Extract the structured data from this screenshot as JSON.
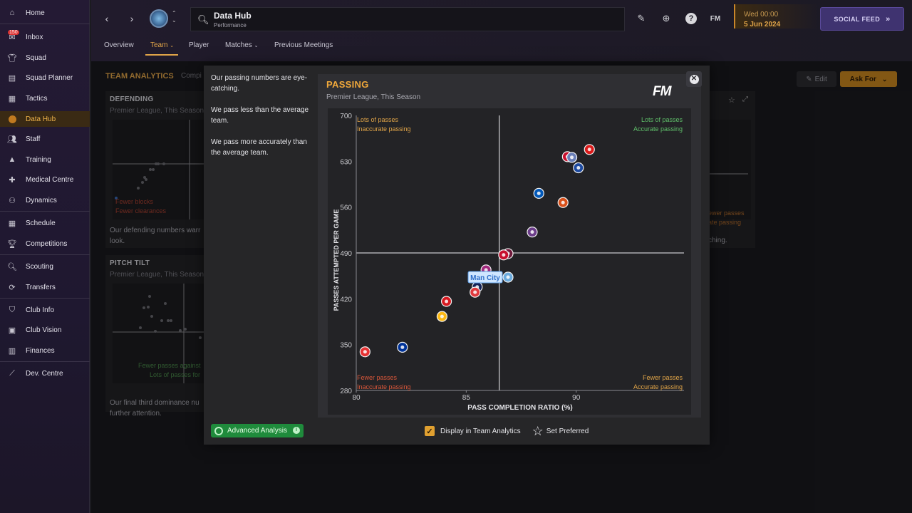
{
  "sidebar": {
    "items": [
      {
        "label": "Home",
        "icon": "home-icon"
      },
      {
        "label": "Inbox",
        "icon": "inbox-icon",
        "badge": "150"
      },
      {
        "label": "Squad",
        "icon": "shirt-icon"
      },
      {
        "label": "Squad Planner",
        "icon": "clipboard-icon"
      },
      {
        "label": "Tactics",
        "icon": "tactics-board-icon"
      },
      {
        "label": "Data Hub",
        "icon": "data-hub-icon"
      },
      {
        "label": "Staff",
        "icon": "staff-icon"
      },
      {
        "label": "Training",
        "icon": "training-icon"
      },
      {
        "label": "Medical Centre",
        "icon": "medical-icon"
      },
      {
        "label": "Dynamics",
        "icon": "dynamics-icon"
      },
      {
        "label": "Schedule",
        "icon": "calendar-icon"
      },
      {
        "label": "Competitions",
        "icon": "trophy-icon"
      },
      {
        "label": "Scouting",
        "icon": "scouting-icon"
      },
      {
        "label": "Transfers",
        "icon": "transfers-icon"
      },
      {
        "label": "Club Info",
        "icon": "shield-icon"
      },
      {
        "label": "Club Vision",
        "icon": "vision-icon"
      },
      {
        "label": "Finances",
        "icon": "finances-icon"
      },
      {
        "label": "Dev. Centre",
        "icon": "dev-centre-icon"
      }
    ]
  },
  "header": {
    "title": "Data Hub",
    "subtitle": "Performance",
    "day_time": "Wed 00:00",
    "date": "5 Jun 2024",
    "social_feed": "SOCIAL FEED",
    "fm_label": "FM",
    "tabs": [
      {
        "label": "Overview"
      },
      {
        "label": "Team"
      },
      {
        "label": "Player"
      },
      {
        "label": "Matches"
      },
      {
        "label": "Previous Meetings"
      }
    ]
  },
  "main": {
    "title": "TEAM ANALYTICS",
    "compare_prefix": "Compi",
    "edit": "Edit",
    "ask_for": "Ask For",
    "cards": {
      "defending": {
        "title": "DEFENDING",
        "subtitle": "Premier League, This Season",
        "q1": "Fewer blocks",
        "q2": "Fewer clearances",
        "desc1": "Our defending numbers warr",
        "desc2": "look."
      },
      "pitch_tilt": {
        "title": "PITCH TILT",
        "subtitle": "Premier League, This Season",
        "q1": "Fewer passes against",
        "q2": "Lots of passes for",
        "desc1": "Our final third dominance nu",
        "desc2": "further attention."
      },
      "right": {
        "q1": "ewer passes",
        "q2": "ate passing",
        "desc": "ching."
      }
    }
  },
  "modal": {
    "notes": [
      "Our passing numbers are eye-catching.",
      "We pass less than the average team.",
      "We pass more accurately than the average team."
    ],
    "advanced_analysis": "Advanced Analysis",
    "display_in_team_analytics": "Display in Team Analytics",
    "set_preferred": "Set Preferred"
  },
  "chart_data": {
    "type": "scatter",
    "title": "PASSING",
    "subtitle": "Premier League, This Season",
    "xlabel": "PASS COMPLETION RATIO (%)",
    "ylabel": "PASSES ATTEMPTED PER GAME",
    "xlim": [
      80,
      94.9
    ],
    "ylim": [
      280,
      700
    ],
    "xticks": [
      80,
      85,
      90
    ],
    "yticks": [
      280,
      350,
      420,
      490,
      560,
      630,
      700
    ],
    "average_x": 86.5,
    "average_y": 490,
    "quadrant_labels": {
      "top_left": [
        "Lots of passes",
        "Inaccurate passing"
      ],
      "top_right": [
        "Lots of passes",
        "Accurate passing"
      ],
      "bottom_left": [
        "Fewer passes",
        "Inaccurate passing"
      ],
      "bottom_right": [
        "Fewer passes",
        "Accurate passing"
      ]
    },
    "highlight_label": "Man City",
    "points": [
      {
        "x": 90.6,
        "y": 648,
        "color": "#db1a1a"
      },
      {
        "x": 89.6,
        "y": 637,
        "color": "#c8102e"
      },
      {
        "x": 89.8,
        "y": 636,
        "color": "#6a7fb8"
      },
      {
        "x": 90.1,
        "y": 620,
        "color": "#1d4aa0"
      },
      {
        "x": 88.3,
        "y": 581,
        "color": "#0057b8"
      },
      {
        "x": 89.4,
        "y": 567,
        "color": "#d9501a"
      },
      {
        "x": 88.0,
        "y": 522,
        "color": "#6c3d8a"
      },
      {
        "x": 86.9,
        "y": 489,
        "color": "#6f1a3b"
      },
      {
        "x": 86.7,
        "y": 487,
        "color": "#c8102e"
      },
      {
        "x": 85.9,
        "y": 464,
        "color": "#a1287c"
      },
      {
        "x": 86.9,
        "y": 453,
        "color": "#6cabdd",
        "highlight": true
      },
      {
        "x": 85.5,
        "y": 438,
        "color": "#132257"
      },
      {
        "x": 85.4,
        "y": 430,
        "color": "#e03a3e"
      },
      {
        "x": 84.1,
        "y": 416,
        "color": "#d71920"
      },
      {
        "x": 83.9,
        "y": 393,
        "color": "#fdb913"
      },
      {
        "x": 82.1,
        "y": 346,
        "color": "#003399"
      },
      {
        "x": 80.4,
        "y": 339,
        "color": "#e53233"
      }
    ]
  }
}
